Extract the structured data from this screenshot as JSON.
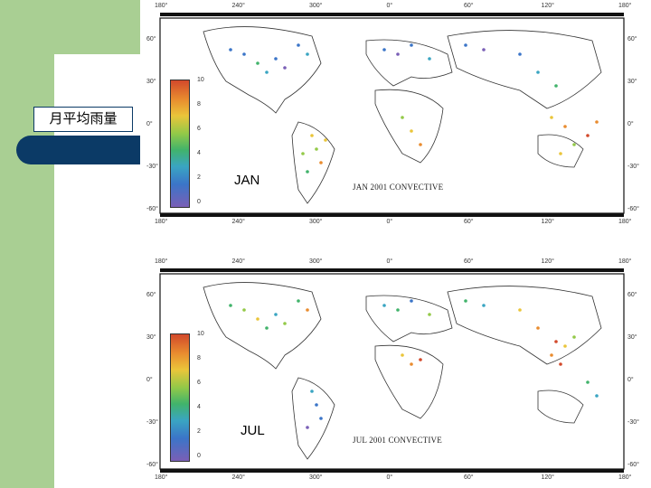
{
  "slide": {
    "title": "月平均雨量",
    "colors": {
      "green": "#a9cf93",
      "navy": "#0b3a66"
    }
  },
  "maps": {
    "jan": {
      "month_label": "JAN",
      "caption": "JAN 2001 CONVECTIVE",
      "top_ticks": [
        "180°",
        "240°",
        "300°",
        "0°",
        "60°",
        "120°",
        "180°"
      ],
      "bottom_ticks": [
        "180°",
        "240°",
        "300°",
        "0°",
        "60°",
        "120°",
        "180°"
      ],
      "left_lat": [
        "60°",
        "30°",
        "0°",
        "-30°",
        "-60°"
      ],
      "right_lat": [
        "60°",
        "30°",
        "0°",
        "-30°",
        "-60°"
      ],
      "legend_ticks": [
        "10",
        "8",
        "6",
        "4",
        "2",
        "0"
      ]
    },
    "jul": {
      "month_label": "JUL",
      "caption": "JUL 2001 CONVECTIVE",
      "top_ticks": [
        "180°",
        "240°",
        "300°",
        "0°",
        "60°",
        "120°",
        "180°"
      ],
      "bottom_ticks": [
        "180°",
        "240°",
        "300°",
        "0°",
        "60°",
        "120°",
        "180°"
      ],
      "left_lat": [
        "60°",
        "30°",
        "0°",
        "-30°",
        "-60°"
      ],
      "right_lat": [
        "60°",
        "30°",
        "0°",
        "-30°",
        "-60°"
      ],
      "legend_ticks": [
        "10",
        "8",
        "6",
        "4",
        "2",
        "0"
      ]
    }
  }
}
